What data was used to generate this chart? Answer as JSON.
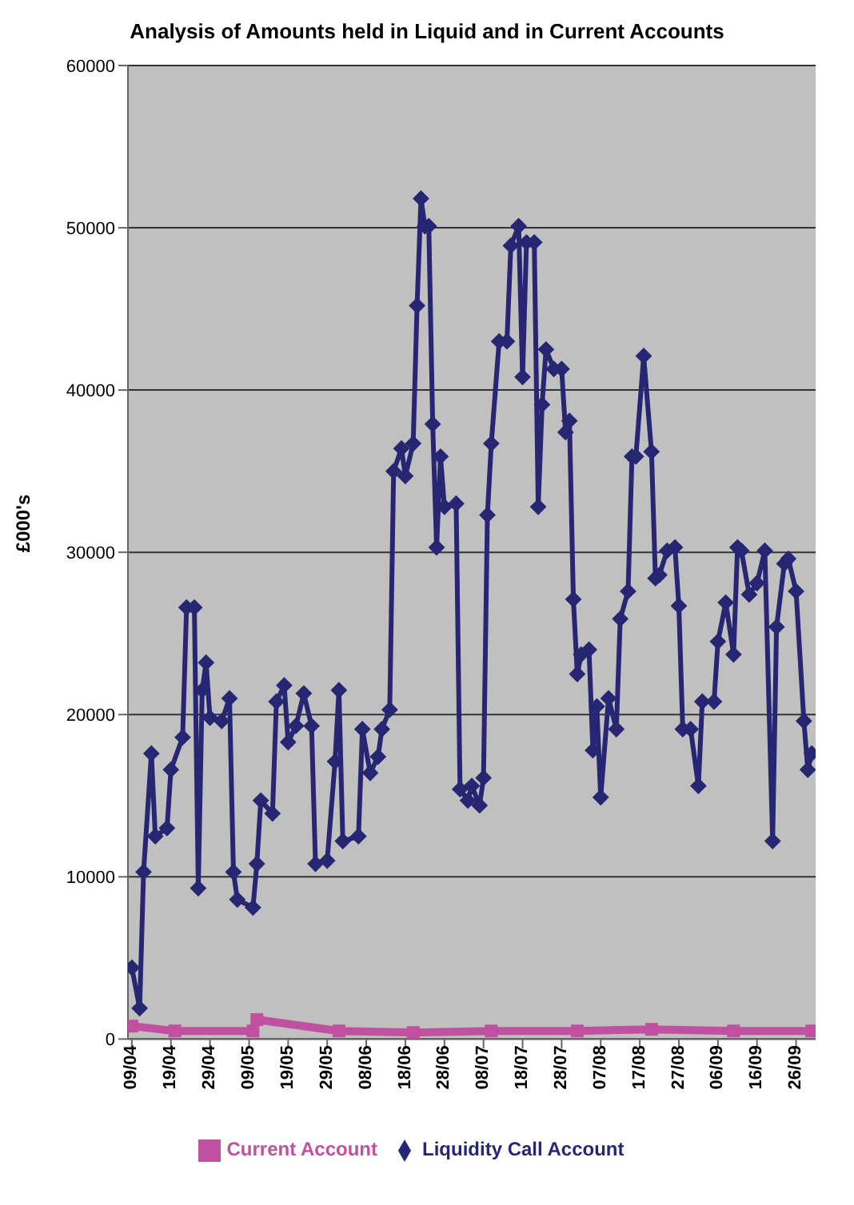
{
  "chart_data": {
    "type": "line",
    "title": "Analysis of Amounts held in Liquid and in Current Accounts",
    "ylabel": "£000's",
    "xlim": [
      "--04-08",
      "--10-01"
    ],
    "xticks": [
      {
        "value": "--04-09",
        "label": "09/04"
      },
      {
        "value": "--04-19",
        "label": "19/04"
      },
      {
        "value": "--04-29",
        "label": "29/04"
      },
      {
        "value": "--05-09",
        "label": "09/05"
      },
      {
        "value": "--05-19",
        "label": "19/05"
      },
      {
        "value": "--05-29",
        "label": "29/05"
      },
      {
        "value": "--06-08",
        "label": "08/06"
      },
      {
        "value": "--06-18",
        "label": "18/06"
      },
      {
        "value": "--06-28",
        "label": "28/06"
      },
      {
        "value": "--07-08",
        "label": "08/07"
      },
      {
        "value": "--07-18",
        "label": "18/07"
      },
      {
        "value": "--07-28",
        "label": "28/07"
      },
      {
        "value": "--08-07",
        "label": "07/08"
      },
      {
        "value": "--08-17",
        "label": "17/08"
      },
      {
        "value": "--08-27",
        "label": "27/08"
      },
      {
        "value": "--09-06",
        "label": "06/09"
      },
      {
        "value": "--09-16",
        "label": "16/09"
      },
      {
        "value": "--09-26",
        "label": "26/09"
      }
    ],
    "ylim": [
      0,
      60000
    ],
    "yticks": [
      0,
      10000,
      20000,
      30000,
      40000,
      50000,
      60000
    ],
    "grid": "y",
    "legend": "bottom",
    "series": [
      {
        "name": "Liquidity Call Account",
        "color": "#262673",
        "marker": "diamond",
        "x": [
          "--04-09",
          "--04-11",
          "--04-12",
          "--04-14",
          "--04-15",
          "--04-18",
          "--04-19",
          "--04-22",
          "--04-23",
          "--04-25",
          "--04-26",
          "--04-27",
          "--04-28",
          "--04-29",
          "--05-02",
          "--05-04",
          "--05-05",
          "--05-06",
          "--05-10",
          "--05-11",
          "--05-12",
          "--05-15",
          "--05-16",
          "--05-18",
          "--05-19",
          "--05-21",
          "--05-23",
          "--05-25",
          "--05-26",
          "--05-29",
          "--05-31",
          "--06-01",
          "--06-02",
          "--06-06",
          "--06-07",
          "--06-09",
          "--06-11",
          "--06-12",
          "--06-14",
          "--06-15",
          "--06-17",
          "--06-18",
          "--06-20",
          "--06-21",
          "--06-22",
          "--06-23",
          "--06-24",
          "--06-25",
          "--06-26",
          "--06-27",
          "--06-28",
          "--07-01",
          "--07-02",
          "--07-04",
          "--07-05",
          "--07-07",
          "--07-08",
          "--07-09",
          "--07-10",
          "--07-12",
          "--07-14",
          "--07-15",
          "--07-17",
          "--07-18",
          "--07-19",
          "--07-21",
          "--07-22",
          "--07-23",
          "--07-24",
          "--07-26",
          "--07-28",
          "--07-29",
          "--07-30",
          "--07-31",
          "--08-01",
          "--08-02",
          "--08-04",
          "--08-05",
          "--08-06",
          "--08-07",
          "--08-09",
          "--08-11",
          "--08-12",
          "--08-14",
          "--08-15",
          "--08-16",
          "--08-18",
          "--08-20",
          "--08-21",
          "--08-22",
          "--08-24",
          "--08-26",
          "--08-27",
          "--08-28",
          "--08-30",
          "--09-01",
          "--09-02",
          "--09-05",
          "--09-06",
          "--09-08",
          "--09-10",
          "--09-11",
          "--09-12",
          "--09-14",
          "--09-16",
          "--09-18",
          "--09-20",
          "--09-21",
          "--09-23",
          "--09-24",
          "--09-26",
          "--09-28",
          "--09-29",
          "--09-30"
        ],
        "values": [
          4400,
          1900,
          10300,
          17600,
          12500,
          13000,
          16600,
          18600,
          26600,
          26600,
          9300,
          21500,
          23200,
          19800,
          19600,
          21000,
          10300,
          8600,
          8100,
          10800,
          14700,
          13900,
          20800,
          21800,
          18300,
          19300,
          21300,
          19300,
          10800,
          11000,
          17100,
          21500,
          12200,
          12500,
          19100,
          16400,
          17400,
          19100,
          20300,
          35000,
          36400,
          34700,
          36700,
          45200,
          51800,
          50100,
          50100,
          37900,
          30300,
          35900,
          32800,
          33000,
          15400,
          14700,
          15600,
          14400,
          16100,
          32300,
          36700,
          43000,
          43000,
          48900,
          50100,
          40800,
          49100,
          49100,
          32800,
          39100,
          42500,
          41300,
          41300,
          37400,
          38100,
          27100,
          22500,
          23700,
          24000,
          17800,
          20500,
          14900,
          21000,
          19100,
          25900,
          27600,
          35900,
          35900,
          42100,
          36200,
          28400,
          28600,
          30100,
          30300,
          26700,
          19100,
          19100,
          15600,
          20800,
          20800,
          24500,
          26900,
          23700,
          30300,
          30100,
          27400,
          28100,
          30100,
          12200,
          25400,
          29300,
          29600,
          27600,
          19600,
          16600,
          17600
        ]
      },
      {
        "name": "Current Account",
        "color": "#c050a0",
        "marker": "square",
        "x": [
          "--04-09",
          "--04-20",
          "--05-10",
          "--05-11",
          "--06-01",
          "--06-20",
          "--07-10",
          "--08-01",
          "--08-20",
          "--09-10",
          "--09-30"
        ],
        "values": [
          800,
          500,
          500,
          1200,
          500,
          400,
          500,
          500,
          600,
          500,
          500
        ]
      }
    ]
  }
}
